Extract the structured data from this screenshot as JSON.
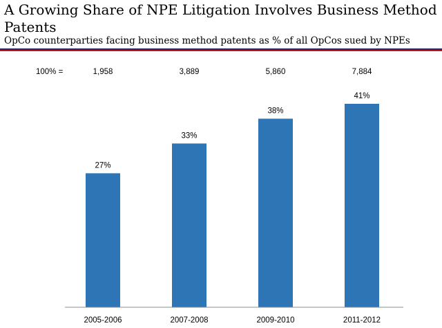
{
  "header": {
    "title": "A Growing Share of NPE Litigation Involves Business Method Patents",
    "subtitle": "OpCo counterparties facing business method patents as % of all OpCos sued by NPEs"
  },
  "chart_data": {
    "type": "bar",
    "title": "A Growing Share of NPE Litigation Involves Business Method Patents",
    "subtitle": "OpCo counterparties facing business method patents as % of all OpCos sued by NPEs",
    "categories": [
      "2005-2006",
      "2007-2008",
      "2009-2010",
      "2011-2012"
    ],
    "values": [
      27,
      33,
      38,
      41
    ],
    "value_labels": [
      "27%",
      "33%",
      "38%",
      "41%"
    ],
    "base_label": "100% =",
    "base_values": [
      "1,958",
      "3,889",
      "5,860",
      "7,884"
    ],
    "xlabel": "",
    "ylabel": "",
    "ylim": [
      0,
      41
    ],
    "grid": false,
    "legend": "none",
    "bar_color": "#2e75b6"
  }
}
